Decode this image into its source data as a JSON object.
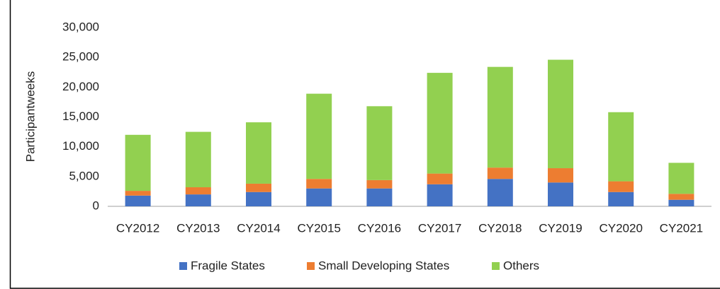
{
  "chart_data": {
    "type": "stacked_bar",
    "y_label": "Participantweeks",
    "categories": [
      "CY2012",
      "CY2013",
      "CY2014",
      "CY2015",
      "CY2016",
      "CY2017",
      "CY2018",
      "CY2019",
      "CY2020",
      "CY2021"
    ],
    "series": [
      {
        "name": "Fragile States",
        "color": "#4472c4",
        "values": [
          1800,
          2000,
          2400,
          3000,
          3000,
          3700,
          4600,
          4000,
          2400,
          1100
        ]
      },
      {
        "name": "Small Developing States",
        "color": "#ed7d31",
        "values": [
          800,
          1200,
          1400,
          1600,
          1400,
          1800,
          1900,
          2400,
          1800,
          1000
        ]
      },
      {
        "name": "Others",
        "color": "#92d050",
        "values": [
          9400,
          9300,
          10300,
          14300,
          12400,
          16900,
          16900,
          18200,
          11600,
          5200
        ]
      }
    ],
    "ylim": [
      0,
      30000
    ],
    "yticks": [
      0,
      {
        "value": 5000,
        "label": "5,000"
      },
      {
        "value": 10000,
        "label": "10,000"
      },
      {
        "value": 15000,
        "label": "15,000"
      },
      {
        "value": 20000,
        "label": "20,000"
      },
      {
        "value": 25000,
        "label": "25,000"
      },
      {
        "value": 30000,
        "label": "30,000"
      }
    ],
    "legend": "bottom"
  }
}
